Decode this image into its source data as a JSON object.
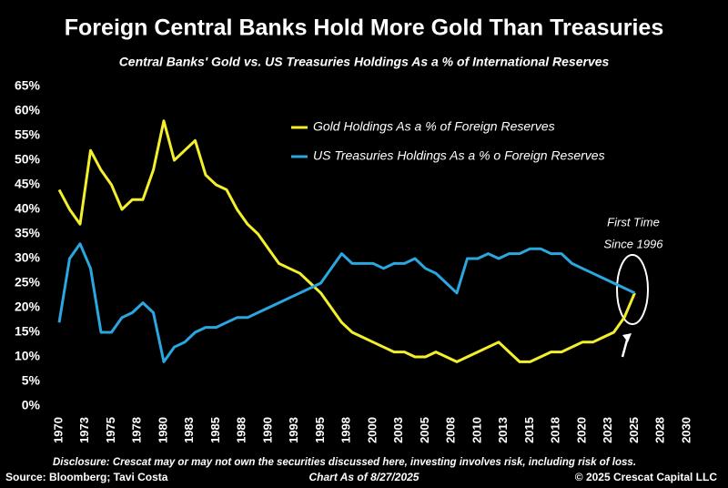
{
  "chart_data": {
    "type": "line",
    "title": "Foreign Central Banks Hold More Gold Than Treasuries",
    "subtitle": "Central Banks' Gold vs. US Treasuries Holdings As a % of International Reserves",
    "x": [
      1970,
      1971,
      1972,
      1973,
      1974,
      1975,
      1976,
      1977,
      1978,
      1979,
      1980,
      1981,
      1982,
      1983,
      1984,
      1985,
      1986,
      1987,
      1988,
      1989,
      1990,
      1991,
      1992,
      1993,
      1994,
      1995,
      1996,
      1997,
      1998,
      1999,
      2000,
      2001,
      2002,
      2003,
      2004,
      2005,
      2006,
      2007,
      2008,
      2009,
      2010,
      2011,
      2012,
      2013,
      2014,
      2015,
      2016,
      2017,
      2018,
      2019,
      2020,
      2021,
      2022,
      2023,
      2024,
      2025
    ],
    "series": [
      {
        "name": "Gold Holdings As a % of Foreign Reserves",
        "color": "#f4ef2c",
        "values": [
          44,
          40,
          37,
          52,
          48,
          45,
          40,
          42,
          42,
          48,
          58,
          50,
          52,
          54,
          47,
          45,
          44,
          40,
          37,
          35,
          32,
          29,
          28,
          27,
          25,
          23,
          20,
          17,
          15,
          14,
          13,
          12,
          11,
          11,
          10,
          10,
          11,
          10,
          9,
          10,
          11,
          12,
          13,
          11,
          9,
          9,
          10,
          11,
          11,
          12,
          13,
          13,
          14,
          15,
          18,
          23
        ]
      },
      {
        "name": "US Treasuries Holdings As a % o Foreign Reserves",
        "color": "#2ba6df",
        "values": [
          17,
          30,
          33,
          28,
          15,
          15,
          18,
          19,
          21,
          19,
          9,
          12,
          13,
          15,
          16,
          16,
          17,
          18,
          18,
          19,
          20,
          21,
          22,
          23,
          24,
          25,
          28,
          31,
          29,
          29,
          29,
          28,
          29,
          29,
          30,
          28,
          27,
          25,
          23,
          30,
          30,
          31,
          30,
          31,
          31,
          32,
          32,
          31,
          31,
          29,
          28,
          27,
          26,
          25,
          24,
          23
        ]
      }
    ],
    "xlim": [
      1970,
      2030
    ],
    "xticks": [
      1970,
      {
        "value": 1972.5,
        "label": "1973"
      },
      1975,
      {
        "value": 1977.5,
        "label": "1978"
      },
      1980,
      {
        "value": 1982.5,
        "label": "1983"
      },
      1985,
      {
        "value": 1987.5,
        "label": "1988"
      },
      1990,
      {
        "value": 1992.5,
        "label": "1993"
      },
      1995,
      {
        "value": 1997.5,
        "label": "1998"
      },
      2000,
      {
        "value": 2002.5,
        "label": "2003"
      },
      2005,
      {
        "value": 2007.5,
        "label": "2008"
      },
      2010,
      {
        "value": 2012.5,
        "label": "2013"
      },
      2015,
      {
        "value": 2017.5,
        "label": "2018"
      },
      2020,
      {
        "value": 2022.5,
        "label": "2023"
      },
      2025,
      {
        "value": 2027.5,
        "label": "2028"
      },
      2030
    ],
    "ylim": [
      0,
      65
    ],
    "yticks": [
      {
        "value": 0,
        "label": "0%"
      },
      {
        "value": 5,
        "label": "5%"
      },
      {
        "value": 10,
        "label": "10%"
      },
      {
        "value": 15,
        "label": "15%"
      },
      {
        "value": 20,
        "label": "20%"
      },
      {
        "value": 25,
        "label": "25%"
      },
      {
        "value": 30,
        "label": "30%"
      },
      {
        "value": 35,
        "label": "35%"
      },
      {
        "value": 40,
        "label": "40%"
      },
      {
        "value": 45,
        "label": "45%"
      },
      {
        "value": 50,
        "label": "50%"
      },
      {
        "value": 55,
        "label": "55%"
      },
      {
        "value": 60,
        "label": "60%"
      },
      {
        "value": 65,
        "label": "65%"
      }
    ],
    "legend": "upper right",
    "annotations": [
      "First Time",
      "Since 1996"
    ],
    "disclosure": "Disclosure: Crescat may or may not own the securities discussed here, investing involves risk, including risk of loss.",
    "source": "Source: Bloomberg; Tavi Costa",
    "date_note": "Chart As of 8/27/2025",
    "copyright": "© 2025 Crescat Capital LLC"
  }
}
